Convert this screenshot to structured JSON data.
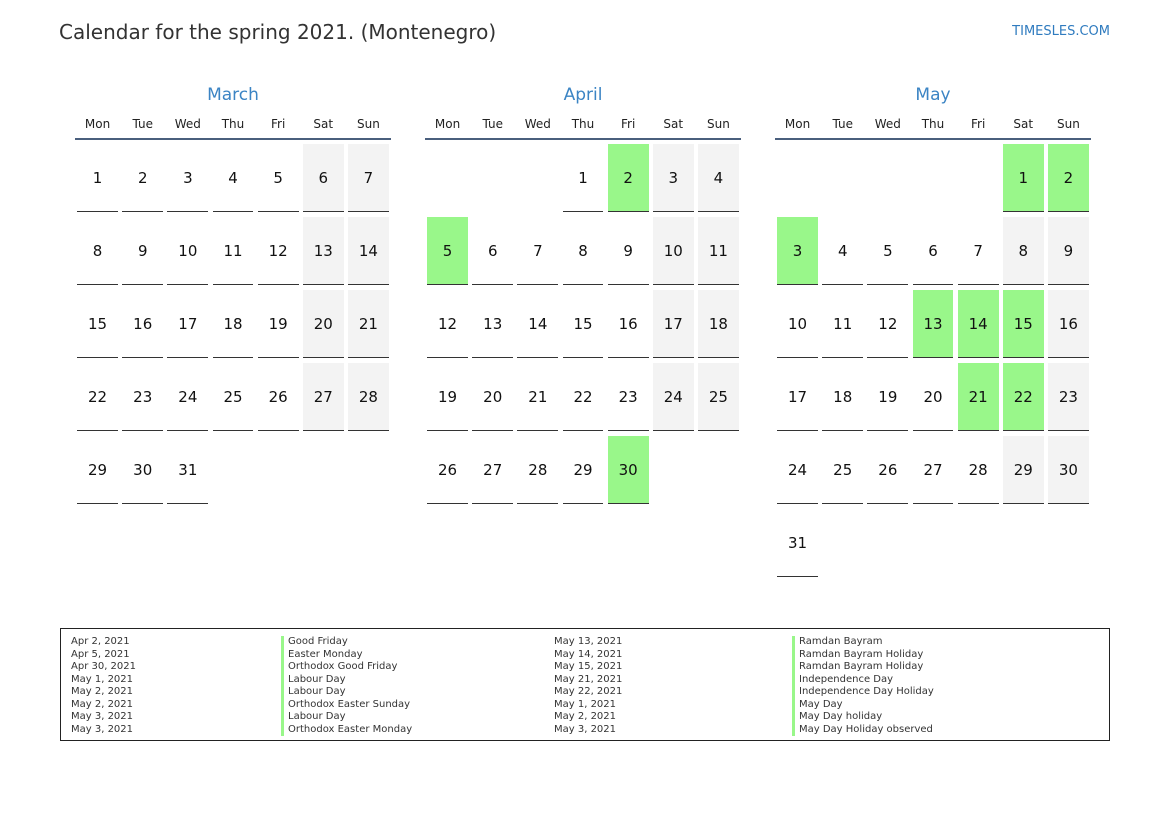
{
  "header": {
    "title": "Calendar for the spring 2021. (Montenegro)",
    "site": "TIMESLES.COM"
  },
  "weekdays": [
    "Mon",
    "Tue",
    "Wed",
    "Thu",
    "Fri",
    "Sat",
    "Sun"
  ],
  "colors": {
    "holiday": "#99f78a",
    "weekend": "#f3f3f3",
    "accent": "#3b84c4"
  },
  "months": [
    {
      "name": "March",
      "weeks": [
        [
          {
            "d": "1"
          },
          {
            "d": "2"
          },
          {
            "d": "3"
          },
          {
            "d": "4"
          },
          {
            "d": "5"
          },
          {
            "d": "6",
            "w": true
          },
          {
            "d": "7",
            "w": true
          }
        ],
        [
          {
            "d": "8"
          },
          {
            "d": "9"
          },
          {
            "d": "10"
          },
          {
            "d": "11"
          },
          {
            "d": "12"
          },
          {
            "d": "13",
            "w": true
          },
          {
            "d": "14",
            "w": true
          }
        ],
        [
          {
            "d": "15"
          },
          {
            "d": "16"
          },
          {
            "d": "17"
          },
          {
            "d": "18"
          },
          {
            "d": "19"
          },
          {
            "d": "20",
            "w": true
          },
          {
            "d": "21",
            "w": true
          }
        ],
        [
          {
            "d": "22"
          },
          {
            "d": "23"
          },
          {
            "d": "24"
          },
          {
            "d": "25"
          },
          {
            "d": "26"
          },
          {
            "d": "27",
            "w": true
          },
          {
            "d": "28",
            "w": true
          }
        ],
        [
          {
            "d": "29"
          },
          {
            "d": "30"
          },
          {
            "d": "31"
          },
          {
            "d": ""
          },
          {
            "d": ""
          },
          {
            "d": ""
          },
          {
            "d": ""
          }
        ]
      ]
    },
    {
      "name": "April",
      "weeks": [
        [
          {
            "d": ""
          },
          {
            "d": ""
          },
          {
            "d": ""
          },
          {
            "d": "1"
          },
          {
            "d": "2",
            "h": true
          },
          {
            "d": "3",
            "w": true
          },
          {
            "d": "4",
            "w": true
          }
        ],
        [
          {
            "d": "5",
            "h": true
          },
          {
            "d": "6"
          },
          {
            "d": "7"
          },
          {
            "d": "8"
          },
          {
            "d": "9"
          },
          {
            "d": "10",
            "w": true
          },
          {
            "d": "11",
            "w": true
          }
        ],
        [
          {
            "d": "12"
          },
          {
            "d": "13"
          },
          {
            "d": "14"
          },
          {
            "d": "15"
          },
          {
            "d": "16"
          },
          {
            "d": "17",
            "w": true
          },
          {
            "d": "18",
            "w": true
          }
        ],
        [
          {
            "d": "19"
          },
          {
            "d": "20"
          },
          {
            "d": "21"
          },
          {
            "d": "22"
          },
          {
            "d": "23"
          },
          {
            "d": "24",
            "w": true
          },
          {
            "d": "25",
            "w": true
          }
        ],
        [
          {
            "d": "26"
          },
          {
            "d": "27"
          },
          {
            "d": "28"
          },
          {
            "d": "29"
          },
          {
            "d": "30",
            "h": true
          },
          {
            "d": ""
          },
          {
            "d": ""
          }
        ]
      ]
    },
    {
      "name": "May",
      "weeks": [
        [
          {
            "d": ""
          },
          {
            "d": ""
          },
          {
            "d": ""
          },
          {
            "d": ""
          },
          {
            "d": ""
          },
          {
            "d": "1",
            "h": true
          },
          {
            "d": "2",
            "h": true
          }
        ],
        [
          {
            "d": "3",
            "h": true
          },
          {
            "d": "4"
          },
          {
            "d": "5"
          },
          {
            "d": "6"
          },
          {
            "d": "7"
          },
          {
            "d": "8",
            "w": true
          },
          {
            "d": "9",
            "w": true
          }
        ],
        [
          {
            "d": "10"
          },
          {
            "d": "11"
          },
          {
            "d": "12"
          },
          {
            "d": "13",
            "h": true
          },
          {
            "d": "14",
            "h": true
          },
          {
            "d": "15",
            "h": true
          },
          {
            "d": "16",
            "w": true
          }
        ],
        [
          {
            "d": "17"
          },
          {
            "d": "18"
          },
          {
            "d": "19"
          },
          {
            "d": "20"
          },
          {
            "d": "21",
            "h": true
          },
          {
            "d": "22",
            "h": true
          },
          {
            "d": "23",
            "w": true
          }
        ],
        [
          {
            "d": "24"
          },
          {
            "d": "25"
          },
          {
            "d": "26"
          },
          {
            "d": "27"
          },
          {
            "d": "28"
          },
          {
            "d": "29",
            "w": true
          },
          {
            "d": "30",
            "w": true
          }
        ],
        [
          {
            "d": "31"
          },
          {
            "d": ""
          },
          {
            "d": ""
          },
          {
            "d": ""
          },
          {
            "d": ""
          },
          {
            "d": ""
          },
          {
            "d": ""
          }
        ]
      ]
    }
  ],
  "legend": {
    "left": [
      {
        "date": "Apr 2, 2021",
        "name": "Good Friday"
      },
      {
        "date": "Apr 5, 2021",
        "name": "Easter Monday"
      },
      {
        "date": "Apr 30, 2021",
        "name": "Orthodox Good Friday"
      },
      {
        "date": "May 1, 2021",
        "name": "Labour Day"
      },
      {
        "date": "May 2, 2021",
        "name": "Labour Day"
      },
      {
        "date": "May 2, 2021",
        "name": "Orthodox Easter Sunday"
      },
      {
        "date": "May 3, 2021",
        "name": "Labour Day"
      },
      {
        "date": "May 3, 2021",
        "name": "Orthodox Easter Monday"
      }
    ],
    "right": [
      {
        "date": "May 13, 2021",
        "name": "Ramdan Bayram"
      },
      {
        "date": "May 14, 2021",
        "name": "Ramdan Bayram Holiday"
      },
      {
        "date": "May 15, 2021",
        "name": "Ramdan Bayram Holiday"
      },
      {
        "date": "May 21, 2021",
        "name": "Independence Day"
      },
      {
        "date": "May 22, 2021",
        "name": "Independence Day Holiday"
      },
      {
        "date": "May 1, 2021",
        "name": "May Day"
      },
      {
        "date": "May 2, 2021",
        "name": "May Day holiday"
      },
      {
        "date": "May 3, 2021",
        "name": "May Day Holiday observed"
      }
    ]
  }
}
